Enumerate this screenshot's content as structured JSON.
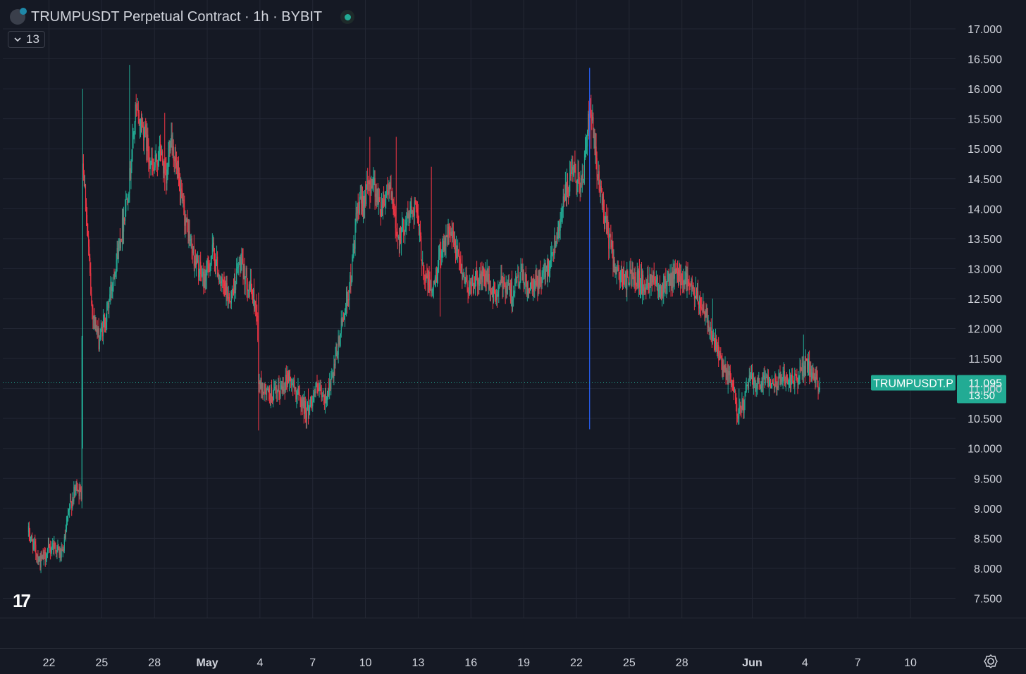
{
  "header": {
    "title": "TRUMPUSDT Perpetual Contract · 1h · BYBIT",
    "collapse_count": "13"
  },
  "price_label": {
    "symbol": "TRUMPUSDT.P",
    "price": "11.095",
    "countdown": "13:50"
  },
  "colors": {
    "background": "#151924",
    "grid": "#232734",
    "up": "#22ab94",
    "down": "#f23645",
    "text": "#d1d4dc",
    "vertical_line": "#2962ff"
  },
  "icons": [
    "symbol-logo-icon",
    "status-dot-icon",
    "chevron-down-icon",
    "tradingview-logo-icon",
    "settings-icon"
  ],
  "chart_data": {
    "type": "candlestick",
    "title": "TRUMPUSDT Perpetual Contract · 1h · BYBIT",
    "ylim": [
      7.2,
      17.4
    ],
    "y_ticks": [
      "17.000",
      "16.500",
      "16.000",
      "15.500",
      "15.000",
      "14.500",
      "14.000",
      "13.500",
      "13.000",
      "12.500",
      "12.000",
      "11.500",
      "11.000",
      "10.500",
      "10.000",
      "9.500",
      "9.000",
      "8.500",
      "8.000",
      "7.500"
    ],
    "x_ticks": [
      "22",
      "25",
      "28",
      "May",
      "4",
      "7",
      "10",
      "13",
      "16",
      "19",
      "22",
      "25",
      "28",
      "Jun",
      "4",
      "7",
      "10"
    ],
    "x_tick_dates": [
      "2025-04-22",
      "2025-04-25",
      "2025-04-28",
      "2025-05-01",
      "2025-05-04",
      "2025-05-07",
      "2025-05-10",
      "2025-05-13",
      "2025-05-16",
      "2025-05-19",
      "2025-05-22",
      "2025-05-25",
      "2025-05-28",
      "2025-06-01",
      "2025-06-04",
      "2025-06-07",
      "2025-06-10"
    ],
    "grid": true,
    "last_price": 11.095,
    "vertical_marker_date": "2025-05-22 18:00",
    "price_path": [
      [
        "2025-04-20 20:00",
        8.6
      ],
      [
        "2025-04-21 12:00",
        8.1
      ],
      [
        "2025-04-22 06:00",
        8.4
      ],
      [
        "2025-04-22 18:00",
        8.2
      ],
      [
        "2025-04-23 04:00",
        9.0
      ],
      [
        "2025-04-23 14:00",
        9.4
      ],
      [
        "2025-04-23 20:00",
        9.2
      ],
      [
        "2025-04-23 22:00",
        14.8
      ],
      [
        "2025-04-24 02:00",
        14.2
      ],
      [
        "2025-04-24 10:00",
        12.4
      ],
      [
        "2025-04-24 20:00",
        11.8
      ],
      [
        "2025-04-25 06:00",
        12.2
      ],
      [
        "2025-04-25 16:00",
        12.9
      ],
      [
        "2025-04-26 04:00",
        13.7
      ],
      [
        "2025-04-26 14:00",
        14.5
      ],
      [
        "2025-04-26 22:00",
        15.6
      ],
      [
        "2025-04-27 10:00",
        15.3
      ],
      [
        "2025-04-27 22:00",
        14.6
      ],
      [
        "2025-04-28 08:00",
        15.0
      ],
      [
        "2025-04-28 16:00",
        14.4
      ],
      [
        "2025-04-28 22:00",
        15.3
      ],
      [
        "2025-04-29 10:00",
        14.3
      ],
      [
        "2025-04-29 20:00",
        13.7
      ],
      [
        "2025-04-30 08:00",
        13.1
      ],
      [
        "2025-04-30 20:00",
        12.8
      ],
      [
        "2025-05-01 08:00",
        13.3
      ],
      [
        "2025-05-01 20:00",
        12.7
      ],
      [
        "2025-05-02 08:00",
        12.5
      ],
      [
        "2025-05-02 20:00",
        13.1
      ],
      [
        "2025-05-03 10:00",
        12.7
      ],
      [
        "2025-05-03 20:00",
        12.3
      ],
      [
        "2025-05-03 22:00",
        11.1
      ],
      [
        "2025-05-04 10:00",
        10.9
      ],
      [
        "2025-05-05 00:00",
        10.9
      ],
      [
        "2025-05-05 14:00",
        11.2
      ],
      [
        "2025-05-06 04:00",
        10.9
      ],
      [
        "2025-05-06 16:00",
        10.6
      ],
      [
        "2025-05-07 04:00",
        11.0
      ],
      [
        "2025-05-07 16:00",
        10.8
      ],
      [
        "2025-05-08 04:00",
        11.2
      ],
      [
        "2025-05-08 16:00",
        12.1
      ],
      [
        "2025-05-09 04:00",
        12.8
      ],
      [
        "2025-05-09 12:00",
        13.9
      ],
      [
        "2025-05-09 22:00",
        14.2
      ],
      [
        "2025-05-10 10:00",
        14.5
      ],
      [
        "2025-05-10 20:00",
        14.0
      ],
      [
        "2025-05-11 08:00",
        14.4
      ],
      [
        "2025-05-11 20:00",
        13.5
      ],
      [
        "2025-05-12 08:00",
        13.8
      ],
      [
        "2025-05-12 20:00",
        14.1
      ],
      [
        "2025-05-13 08:00",
        12.9
      ],
      [
        "2025-05-13 20:00",
        12.6
      ],
      [
        "2025-05-14 08:00",
        13.4
      ],
      [
        "2025-05-14 20:00",
        13.6
      ],
      [
        "2025-05-15 08:00",
        13.1
      ],
      [
        "2025-05-15 20:00",
        12.7
      ],
      [
        "2025-05-16 08:00",
        12.8
      ],
      [
        "2025-05-16 20:00",
        12.9
      ],
      [
        "2025-05-17 08:00",
        12.5
      ],
      [
        "2025-05-17 20:00",
        12.8
      ],
      [
        "2025-05-18 08:00",
        12.6
      ],
      [
        "2025-05-18 20:00",
        12.9
      ],
      [
        "2025-05-19 08:00",
        12.6
      ],
      [
        "2025-05-19 20:00",
        12.8
      ],
      [
        "2025-05-20 08:00",
        13.0
      ],
      [
        "2025-05-20 20:00",
        13.5
      ],
      [
        "2025-05-21 08:00",
        14.2
      ],
      [
        "2025-05-21 20:00",
        14.6
      ],
      [
        "2025-05-22 08:00",
        14.4
      ],
      [
        "2025-05-22 16:00",
        15.4
      ],
      [
        "2025-05-22 20:00",
        15.6
      ],
      [
        "2025-05-23 04:00",
        14.6
      ],
      [
        "2025-05-23 12:00",
        14.1
      ],
      [
        "2025-05-23 20:00",
        13.5
      ],
      [
        "2025-05-24 08:00",
        12.9
      ],
      [
        "2025-05-24 20:00",
        12.8
      ],
      [
        "2025-05-25 08:00",
        12.9
      ],
      [
        "2025-05-25 20:00",
        12.7
      ],
      [
        "2025-05-26 08:00",
        12.9
      ],
      [
        "2025-05-26 20:00",
        12.7
      ],
      [
        "2025-05-27 08:00",
        12.8
      ],
      [
        "2025-05-27 20:00",
        12.9
      ],
      [
        "2025-05-28 08:00",
        12.8
      ],
      [
        "2025-05-28 20:00",
        12.5
      ],
      [
        "2025-05-29 08:00",
        12.3
      ],
      [
        "2025-05-29 20:00",
        11.8
      ],
      [
        "2025-05-30 08:00",
        11.3
      ],
      [
        "2025-05-30 20:00",
        11.1
      ],
      [
        "2025-05-31 04:00",
        10.6
      ],
      [
        "2025-05-31 12:00",
        10.7
      ],
      [
        "2025-05-31 20:00",
        11.2
      ],
      [
        "2025-06-01 08:00",
        11.1
      ],
      [
        "2025-06-01 20:00",
        11.2
      ],
      [
        "2025-06-02 08:00",
        11.1
      ],
      [
        "2025-06-02 20:00",
        11.2
      ],
      [
        "2025-06-03 08:00",
        11.1
      ],
      [
        "2025-06-03 20:00",
        11.3
      ],
      [
        "2025-06-04 04:00",
        11.4
      ],
      [
        "2025-06-04 12:00",
        11.1
      ],
      [
        "2025-06-04 20:00",
        11.095
      ]
    ],
    "spikes": [
      [
        "2025-04-23 22:00",
        16.0,
        10.0
      ],
      [
        "2025-04-26 14:00",
        16.4,
        14.1
      ],
      [
        "2025-04-28 14:00",
        15.6,
        14.3
      ],
      [
        "2025-05-03 22:00",
        12.6,
        10.3
      ],
      [
        "2025-05-06 18:00",
        11.0,
        10.4
      ],
      [
        "2025-05-10 06:00",
        15.2,
        14.0
      ],
      [
        "2025-05-11 18:00",
        15.2,
        13.8
      ],
      [
        "2025-05-13 18:00",
        14.7,
        13.3
      ],
      [
        "2025-05-14 06:00",
        13.5,
        12.2
      ],
      [
        "2025-05-22 20:00",
        15.9,
        15.0
      ],
      [
        "2025-05-29 18:00",
        12.5,
        11.8
      ],
      [
        "2025-05-31 06:00",
        11.0,
        10.4
      ],
      [
        "2025-06-03 22:00",
        11.9,
        11.1
      ]
    ]
  }
}
